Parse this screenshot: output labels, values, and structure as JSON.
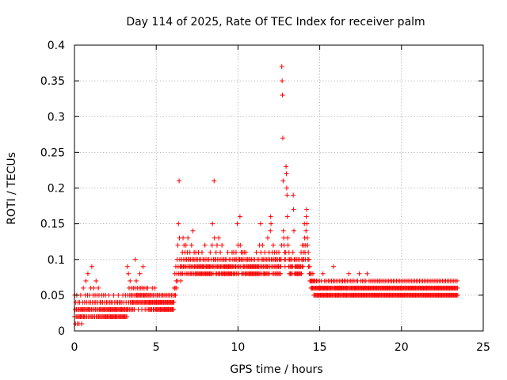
{
  "chart_data": {
    "type": "scatter",
    "title": "Day 114 of 2025, Rate Of TEC Index for receiver palm",
    "xlabel": "GPS time / hours",
    "ylabel": "ROTI / TECUs",
    "xlim": [
      0,
      25
    ],
    "ylim": [
      0,
      0.4
    ],
    "xticks": [
      0,
      5,
      10,
      15,
      20,
      25
    ],
    "yticks": [
      0,
      0.05,
      0.1,
      0.15,
      0.2,
      0.25,
      0.3,
      0.35,
      0.4
    ],
    "xtick_labels": [
      "0",
      "5",
      "10",
      "15",
      "20",
      "25"
    ],
    "ytick_labels": [
      "0",
      "0.05",
      "0.1",
      "0.15",
      "0.2",
      "0.25",
      "0.3",
      "0.35",
      "0.4"
    ],
    "grid": true,
    "marker": "+",
    "color": "#ff0000",
    "x_step_hours": 0.02,
    "series": [
      {
        "x_start": 0,
        "x_step": 0.02,
        "values": [
          0.02,
          0.05,
          0.03,
          0.01,
          0.04,
          0.02,
          0.03,
          0.05,
          0.02,
          0.01,
          0.03,
          0.04,
          0.02,
          0.03,
          0.01,
          0.02,
          0.04,
          0.03,
          0.02,
          0.05,
          0.03,
          0.02,
          0.01,
          0.03,
          0.02,
          0.04,
          0.03,
          0.06,
          0.02,
          0.03,
          0.02,
          0.04,
          0.03,
          0.05,
          0.02,
          0.07,
          0.03,
          0.04,
          0.02,
          0.03,
          0.05,
          0.08,
          0.03,
          0.02,
          0.04,
          0.03,
          0.05,
          0.02,
          0.03,
          0.04,
          0.06,
          0.02,
          0.03,
          0.09,
          0.02,
          0.04,
          0.03,
          0.05,
          0.02,
          0.06,
          0.03,
          0.04,
          0.02,
          0.05,
          0.03,
          0.04,
          0.07,
          0.02,
          0.03,
          0.05,
          0.02,
          0.04,
          0.03,
          0.06,
          0.02,
          0.05,
          0.03,
          0.02,
          0.04,
          0.03,
          0.02,
          0.04,
          0.03,
          0.05,
          0.02,
          0.03,
          0.04,
          0.02,
          0.03,
          0.05,
          0.02,
          0.03,
          0.04,
          0.02,
          0.03,
          0.05,
          0.02,
          0.03,
          0.04,
          0.02,
          0.03,
          0.02,
          0.04,
          0.03,
          0.02,
          0.05,
          0.03,
          0.02,
          0.04,
          0.03,
          0.02,
          0.03,
          0.04,
          0.02,
          0.03,
          0.02,
          0.04,
          0.03,
          0.02,
          0.03,
          0.05,
          0.02,
          0.03,
          0.04,
          0.02,
          0.03,
          0.02,
          0.03,
          0.04,
          0.02,
          0.03,
          0.02,
          0.04,
          0.03,
          0.05,
          0.02,
          0.03,
          0.04,
          0.02,
          0.03,
          0.02,
          0.04,
          0.03,
          0.02,
          0.03,
          0.04,
          0.02,
          0.03,
          0.05,
          0.02,
          0.03,
          0.04,
          0.02,
          0.03,
          0.02,
          0.03,
          0.05,
          0.02,
          0.04,
          0.03,
          0.02,
          0.03,
          0.09,
          0.05,
          0.03,
          0.08,
          0.04,
          0.06,
          0.03,
          0.05,
          0.07,
          0.04,
          0.03,
          0.05,
          0.06,
          0.04,
          0.03,
          0.05,
          0.04,
          0.03,
          0.06,
          0.04,
          0.05,
          0.03,
          0.04,
          0.06,
          0.1,
          0.05,
          0.04,
          0.07,
          0.05,
          0.04,
          0.06,
          0.05,
          0.04,
          0.03,
          0.05,
          0.04,
          0.06,
          0.05,
          0.08,
          0.04,
          0.05,
          0.06,
          0.04,
          0.05,
          0.03,
          0.04,
          0.06,
          0.05,
          0.09,
          0.04,
          0.05,
          0.06,
          0.04,
          0.05,
          0.03,
          0.04,
          0.05,
          0.06,
          0.04,
          0.05,
          0.03,
          0.04,
          0.06,
          0.05,
          0.04,
          0.03,
          0.05,
          0.04,
          0.03,
          0.04,
          0.05,
          0.03,
          0.04,
          0.05,
          0.03,
          0.04,
          0.06,
          0.04,
          0.05,
          0.03,
          0.04,
          0.05,
          0.03,
          0.04,
          0.06,
          0.04,
          0.03,
          0.05,
          0.04,
          0.03,
          0.04,
          0.05,
          0.03,
          0.04,
          0.03,
          0.05,
          0.04,
          0.03,
          0.04,
          0.05,
          0.03,
          0.04,
          0.03,
          0.04,
          0.05,
          0.03,
          0.04,
          0.03,
          0.05,
          0.04,
          0.03,
          0.04,
          0.05,
          0.03,
          0.04,
          0.03,
          0.04,
          0.05,
          0.03,
          0.04,
          0.03,
          0.05,
          0.04,
          0.03,
          0.04,
          0.03,
          0.05,
          0.04,
          0.03,
          0.04,
          0.05,
          0.03,
          0.04,
          0.03,
          0.04,
          0.05,
          0.03,
          0.04,
          0.03,
          0.05,
          0.04,
          0.03,
          0.04,
          0.06,
          0.05,
          0.08,
          0.06,
          0.05,
          0.09,
          0.07,
          0.06,
          0.08,
          0.1,
          0.07,
          0.12,
          0.09,
          0.15,
          0.08,
          0.21,
          0.13,
          0.1,
          0.09,
          0.08,
          0.07,
          0.09,
          0.08,
          0.1,
          0.09,
          0.11,
          0.08,
          0.13,
          0.09,
          0.1,
          0.12,
          0.09,
          0.08,
          0.11,
          0.1,
          0.09,
          0.12,
          0.08,
          0.1,
          0.09,
          0.11,
          0.08,
          0.13,
          0.1,
          0.09,
          0.08,
          0.1,
          0.09,
          0.11,
          0.08,
          0.1,
          0.09,
          0.08,
          0.12,
          0.09,
          0.1,
          0.08,
          0.14,
          0.09,
          0.1,
          0.08,
          0.11,
          0.09,
          0.1,
          0.08,
          0.09,
          0.11,
          0.08,
          0.1,
          0.09,
          0.08,
          0.1,
          0.09,
          0.08,
          0.11,
          0.09,
          0.08,
          0.1,
          0.09,
          0.08,
          0.09,
          0.1,
          0.08,
          0.09,
          0.08,
          0.11,
          0.09,
          0.08,
          0.1,
          0.09,
          0.08,
          0.09,
          0.1,
          0.08,
          0.12,
          0.09,
          0.08,
          0.1,
          0.09,
          0.08,
          0.09,
          0.08,
          0.1,
          0.09,
          0.08,
          0.09,
          0.1,
          0.08,
          0.09,
          0.08,
          0.11,
          0.09,
          0.08,
          0.1,
          0.09,
          0.08,
          0.12,
          0.15,
          0.09,
          0.08,
          0.1,
          0.09,
          0.21,
          0.13,
          0.1,
          0.09,
          0.08,
          0.1,
          0.11,
          0.09,
          0.08,
          0.12,
          0.09,
          0.1,
          0.08,
          0.09,
          0.13,
          0.08,
          0.1,
          0.09,
          0.08,
          0.11,
          0.09,
          0.1,
          0.08,
          0.09,
          0.12,
          0.08,
          0.1,
          0.09,
          0.08,
          0.09,
          0.1,
          0.08,
          0.09,
          0.08,
          0.1,
          0.09,
          0.08,
          0.09,
          0.1,
          0.08,
          0.09,
          0.08,
          0.11,
          0.09,
          0.08,
          0.09,
          0.1,
          0.08,
          0.09,
          0.08,
          0.09,
          0.1,
          0.08,
          0.09,
          0.08,
          0.11,
          0.09,
          0.1,
          0.08,
          0.09,
          0.11,
          0.08,
          0.1,
          0.09,
          0.08,
          0.1,
          0.09,
          0.11,
          0.08,
          0.1,
          0.09,
          0.15,
          0.08,
          0.12,
          0.09,
          0.1,
          0.08,
          0.09,
          0.1,
          0.16,
          0.12,
          0.09,
          0.1,
          0.11,
          0.08,
          0.1,
          0.09,
          0.11,
          0.08,
          0.1,
          0.09,
          0.08,
          0.11,
          0.09,
          0.1,
          0.08,
          0.09,
          0.11,
          0.08,
          0.1,
          0.09,
          0.08,
          0.1,
          0.09,
          0.08,
          0.09,
          0.1,
          0.08,
          0.09,
          0.08,
          0.1,
          0.09,
          0.08,
          0.09,
          0.1,
          0.08,
          0.09,
          0.08,
          0.09,
          0.1,
          0.08,
          0.09,
          0.08,
          0.09,
          0.1,
          0.08,
          0.09,
          0.08,
          0.09,
          0.11,
          0.08,
          0.09,
          0.1,
          0.08,
          0.09,
          0.08,
          0.09,
          0.1,
          0.08,
          0.12,
          0.09,
          0.08,
          0.15,
          0.11,
          0.09,
          0.1,
          0.08,
          0.09,
          0.12,
          0.1,
          0.08,
          0.09,
          0.1,
          0.08,
          0.09,
          0.11,
          0.08,
          0.1,
          0.09,
          0.08,
          0.09,
          0.1,
          0.08,
          0.09,
          0.13,
          0.1,
          0.08,
          0.09,
          0.11,
          0.08,
          0.1,
          0.09,
          0.14,
          0.16,
          0.15,
          0.1,
          0.09,
          0.08,
          0.11,
          0.1,
          0.09,
          0.12,
          0.08,
          0.1,
          0.09,
          0.11,
          0.08,
          0.1,
          0.09,
          0.08,
          0.1,
          0.09,
          0.11,
          0.08,
          0.1,
          0.09,
          0.08,
          0.09,
          0.11,
          0.1,
          0.08,
          0.09,
          0.1,
          0.08,
          0.09,
          0.1,
          0.12,
          0.37,
          0.35,
          0.33,
          0.27,
          0.21,
          0.14,
          0.13,
          0.12,
          0.1,
          0.11,
          0.09,
          0.1,
          0.11,
          0.23,
          0.22,
          0.2,
          0.19,
          0.16,
          0.13,
          0.12,
          0.1,
          0.09,
          0.11,
          0.08,
          0.1,
          0.09,
          0.08,
          0.1,
          0.09,
          0.08,
          0.09,
          0.1,
          0.08,
          0.09,
          0.11,
          0.19,
          0.17,
          0.14,
          0.1,
          0.08,
          0.09,
          0.1,
          0.08,
          0.09,
          0.08,
          0.09,
          0.1,
          0.08,
          0.09,
          0.08,
          0.1,
          0.09,
          0.08,
          0.09,
          0.08,
          0.1,
          0.09,
          0.08,
          0.09,
          0.11,
          0.08,
          0.1,
          0.09,
          0.12,
          0.1,
          0.09,
          0.11,
          0.1,
          0.12,
          0.15,
          0.13,
          0.11,
          0.1,
          0.12,
          0.14,
          0.16,
          0.17,
          0.15,
          0.13,
          0.12,
          0.1,
          0.11,
          0.09,
          0.1,
          0.08,
          0.09,
          0.07,
          0.08,
          0.07,
          0.06,
          0.08,
          0.07,
          0.06,
          0.07,
          0.06,
          0.08,
          0.07,
          0.06,
          0.05,
          0.07,
          0.06,
          0.05,
          0.07,
          0.06,
          0.05,
          0.06,
          0.07,
          0.05,
          0.06,
          0.05,
          0.07,
          0.06,
          0.05,
          0.06,
          0.05,
          0.07,
          0.06,
          0.05,
          0.06,
          0.05,
          0.06,
          0.07,
          0.05,
          0.06,
          0.05,
          0.06,
          0.08,
          0.05,
          0.06,
          0.05,
          0.06,
          0.07,
          0.05,
          0.06,
          0.05,
          0.06,
          0.07,
          0.05,
          0.06,
          0.05,
          0.06,
          0.05,
          0.07,
          0.06,
          0.05,
          0.06,
          0.05,
          0.07,
          0.06,
          0.05,
          0.06,
          0.05,
          0.07,
          0.06,
          0.05,
          0.06,
          0.05,
          0.07,
          0.09,
          0.06,
          0.05,
          0.07,
          0.06,
          0.05,
          0.06,
          0.05,
          0.07,
          0.06,
          0.05,
          0.06,
          0.05,
          0.06,
          0.07,
          0.05,
          0.06,
          0.05,
          0.06,
          0.07,
          0.05,
          0.06,
          0.05,
          0.06,
          0.07,
          0.06,
          0.05,
          0.06,
          0.07,
          0.05,
          0.06,
          0.05,
          0.06,
          0.07,
          0.05,
          0.06,
          0.05,
          0.07,
          0.06,
          0.05,
          0.06,
          0.05,
          0.07,
          0.06,
          0.05,
          0.06,
          0.05,
          0.08,
          0.07,
          0.06,
          0.05,
          0.06,
          0.05,
          0.07,
          0.06,
          0.05,
          0.06,
          0.05,
          0.07,
          0.06,
          0.05,
          0.06,
          0.05,
          0.07,
          0.06,
          0.05,
          0.06,
          0.05,
          0.06,
          0.07,
          0.05,
          0.06,
          0.05,
          0.06,
          0.07,
          0.05,
          0.06,
          0.05,
          0.06,
          0.08,
          0.05,
          0.06,
          0.05,
          0.06,
          0.07,
          0.05,
          0.06,
          0.05,
          0.06,
          0.07,
          0.05,
          0.06,
          0.05,
          0.06,
          0.07,
          0.05,
          0.06,
          0.05,
          0.06,
          0.07,
          0.05,
          0.06,
          0.05,
          0.08,
          0.06,
          0.05,
          0.06,
          0.05,
          0.06,
          0.07,
          0.05,
          0.06,
          0.05,
          0.06,
          0.07,
          0.05,
          0.06,
          0.05,
          0.06,
          0.07,
          0.05,
          0.06,
          0.05,
          0.06,
          0.07,
          0.05,
          0.06,
          0.05,
          0.06,
          0.07,
          0.05,
          0.06,
          0.05,
          0.06,
          0.07,
          0.05,
          0.06,
          0.05,
          0.06,
          0.07,
          0.05,
          0.06,
          0.05,
          0.07,
          0.06,
          0.05,
          0.06,
          0.05,
          0.07,
          0.06,
          0.05,
          0.06,
          0.05,
          0.07,
          0.06,
          0.05,
          0.06,
          0.05,
          0.07,
          0.06,
          0.05,
          0.06,
          0.05,
          0.07,
          0.06,
          0.05,
          0.06,
          0.05,
          0.07,
          0.06,
          0.05,
          0.06,
          0.05,
          0.07,
          0.06,
          0.05,
          0.06,
          0.05,
          0.07,
          0.06,
          0.05,
          0.06,
          0.05,
          0.07,
          0.06,
          0.05,
          0.06,
          0.05,
          0.07,
          0.06,
          0.05,
          0.06,
          0.05,
          0.07,
          0.06,
          0.05,
          0.06,
          0.05,
          0.07,
          0.06,
          0.05,
          0.06,
          0.05,
          0.07,
          0.06,
          0.05,
          0.06,
          0.05,
          0.07,
          0.06,
          0.05,
          0.06,
          0.05,
          0.07,
          0.06,
          0.05,
          0.06,
          0.05,
          0.07,
          0.06,
          0.05,
          0.06,
          0.05,
          0.07,
          0.06,
          0.05,
          0.06,
          0.05,
          0.07,
          0.06,
          0.05,
          0.06,
          0.05,
          0.07,
          0.06,
          0.05,
          0.06,
          0.05,
          0.07,
          0.06,
          0.05,
          0.06,
          0.05,
          0.07,
          0.06,
          0.05,
          0.06,
          0.05,
          0.07,
          0.06,
          0.05,
          0.06,
          0.05,
          0.07,
          0.06,
          0.05,
          0.06,
          0.05,
          0.07,
          0.06,
          0.05,
          0.06,
          0.05,
          0.07,
          0.06,
          0.05,
          0.06,
          0.05,
          0.07,
          0.06,
          0.05,
          0.06,
          0.05,
          0.07,
          0.06,
          0.05,
          0.06,
          0.05,
          0.07,
          0.06,
          0.05,
          0.06,
          0.05,
          0.07,
          0.06,
          0.05,
          0.06,
          0.05,
          0.07,
          0.06,
          0.05,
          0.06,
          0.05,
          0.07,
          0.06,
          0.05,
          0.06,
          0.05,
          0.07,
          0.06,
          0.05,
          0.06,
          0.05,
          0.07,
          0.06,
          0.05,
          0.06,
          0.05,
          0.07,
          0.06,
          0.05,
          0.06,
          0.05,
          0.07,
          0.06,
          0.05,
          0.06,
          0.05,
          0.07,
          0.06,
          0.05,
          0.06,
          0.05,
          0.07,
          0.06,
          0.05,
          0.06,
          0.05,
          0.07,
          0.06,
          0.05,
          0.06,
          0.05,
          0.07,
          0.06,
          0.05,
          0.06,
          0.05,
          0.07,
          0.06,
          0.05,
          0.06,
          0.05,
          0.07,
          0.06,
          0.05,
          0.06,
          0.05,
          0.07,
          0.06,
          0.05,
          0.06,
          0.05,
          0.07,
          0.06,
          0.05,
          0.06,
          0.05,
          0.07,
          0.06,
          0.05,
          0.06,
          0.05,
          0.07,
          0.06,
          0.05,
          0.06,
          0.05,
          0.07,
          0.06,
          0.05,
          0.06,
          0.05,
          0.07,
          0.06,
          0.05,
          0.06,
          0.05,
          0.07,
          0.06,
          0.05
        ]
      }
    ]
  }
}
